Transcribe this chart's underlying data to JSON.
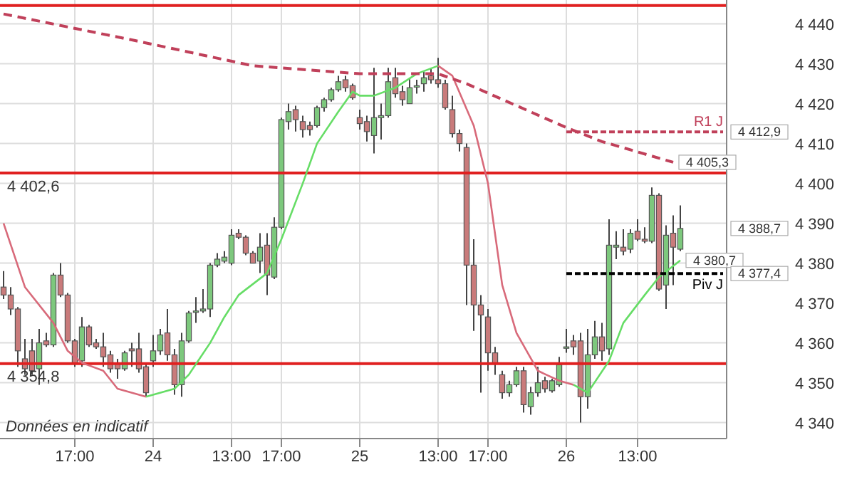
{
  "chart_data": {
    "type": "candlestick",
    "categories": [
      null,
      null,
      null,
      null,
      null,
      null,
      null,
      null,
      null,
      null,
      "17:00",
      null,
      null,
      null,
      null,
      null,
      null,
      null,
      null,
      null,
      null,
      "24",
      null,
      null,
      null,
      null,
      null,
      null,
      null,
      null,
      null,
      null,
      "13:00",
      null,
      null,
      null,
      null,
      null,
      null,
      "17:00",
      null,
      null,
      null,
      null,
      null,
      null,
      null,
      null,
      null,
      null,
      "25",
      null,
      null,
      null,
      null,
      null,
      null,
      null,
      null,
      null,
      null,
      "13:00",
      null,
      null,
      null,
      null,
      null,
      null,
      "17:00",
      null,
      null,
      null,
      null,
      null,
      null,
      null,
      null,
      null,
      null,
      "26",
      null,
      null,
      null,
      null,
      null,
      null,
      null,
      null,
      null,
      "13:00",
      null,
      null,
      null,
      null,
      null,
      null,
      null,
      null,
      null,
      null,
      null,
      null
    ],
    "ohlc": [
      [
        4374,
        4378,
        4371,
        4372
      ],
      [
        4372,
        4374,
        4367,
        4368.5
      ],
      [
        4368.5,
        4369,
        4354,
        4358
      ],
      [
        4356,
        4361,
        4352,
        4353.5
      ],
      [
        4358,
        4361,
        4352,
        4353
      ],
      [
        4353.5,
        4363.5,
        4349.5,
        4360
      ],
      [
        4360.5,
        4362.5,
        4359,
        4359.5
      ],
      [
        4359.5,
        4377.5,
        4359,
        4377
      ],
      [
        4377,
        4380,
        4371.5,
        4372
      ],
      [
        4372,
        4372.5,
        4360,
        4360.5
      ],
      [
        4360.5,
        4361,
        4354,
        4355
      ],
      [
        4355.5,
        4366.5,
        4354,
        4364
      ],
      [
        4364,
        4364.5,
        4359,
        4359.5
      ],
      [
        4360,
        4361,
        4358.5,
        4359
      ],
      [
        4359,
        4362.5,
        4354,
        4356.5
      ],
      [
        4357,
        4358,
        4352.5,
        4353.5
      ],
      [
        4355,
        4356,
        4351,
        4353.5
      ],
      [
        4353.5,
        4358,
        4353,
        4357.5
      ],
      [
        4358.5,
        4360,
        4354,
        4358
      ],
      [
        4358.5,
        4362.5,
        4352.5,
        4353.5
      ],
      [
        4354,
        4355,
        4346.5,
        4347.5
      ],
      [
        4355.5,
        4362,
        4354,
        4358
      ],
      [
        4358,
        4363.5,
        4357,
        4362
      ],
      [
        4362.5,
        4368.5,
        4355.5,
        4357
      ],
      [
        4357,
        4358.5,
        4347,
        4349.5
      ],
      [
        4349.5,
        4362.5,
        4346.5,
        4360.5
      ],
      [
        4360.5,
        4368,
        4360,
        4367.5
      ],
      [
        4368,
        4371.5,
        4365,
        4368
      ],
      [
        4368,
        4373.5,
        4367.5,
        4368.5
      ],
      [
        4368.5,
        4380,
        4366.5,
        4379.5
      ],
      [
        4379.5,
        4382.5,
        4379,
        4381
      ],
      [
        4380.5,
        4383,
        4380,
        4381.5
      ],
      [
        4380,
        4388.5,
        4379.5,
        4387
      ],
      [
        4387.5,
        4388.5,
        4386,
        4386.5
      ],
      [
        4386.5,
        4387,
        4382,
        4382.5
      ],
      [
        4382.5,
        4383,
        4380,
        4380
      ],
      [
        4380.5,
        4387.5,
        4377.5,
        4384
      ],
      [
        4384.5,
        4387.5,
        4372,
        4377
      ],
      [
        4376.5,
        4391.5,
        4376,
        4389
      ],
      [
        4389,
        4416.5,
        4388.5,
        4416
      ],
      [
        4415.5,
        4420,
        4413.5,
        4418
      ],
      [
        4418.5,
        4419.5,
        4413,
        4416
      ],
      [
        4415.5,
        4417,
        4411.5,
        4413.5
      ],
      [
        4414.5,
        4415.5,
        4412,
        4413.5
      ],
      [
        4414.5,
        4419.5,
        4414,
        4419
      ],
      [
        4419,
        4421.5,
        4418,
        4421
      ],
      [
        4421,
        4424,
        4420.5,
        4423.5
      ],
      [
        4423.5,
        4427,
        4423,
        4425.5
      ],
      [
        4426,
        4427,
        4423,
        4424
      ],
      [
        4424.5,
        4425,
        4421,
        4421.5
      ],
      [
        4416.5,
        4418.5,
        4413.5,
        4415
      ],
      [
        4415.5,
        4417,
        4410.5,
        4413
      ],
      [
        4412,
        4429,
        4407.5,
        4416.5
      ],
      [
        4416.5,
        4420,
        4411,
        4417
      ],
      [
        4417,
        4429,
        4416.5,
        4425.5
      ],
      [
        4426.5,
        4429,
        4421.5,
        4422.5
      ],
      [
        4423,
        4424.5,
        4419.5,
        4421
      ],
      [
        4420,
        4426.5,
        4420,
        4424
      ],
      [
        4424.5,
        4426,
        4422.5,
        4424.5
      ],
      [
        4425,
        4428,
        4423,
        4426.5
      ],
      [
        4427,
        4429,
        4425,
        4426
      ],
      [
        4426,
        4431.5,
        4424,
        4425
      ],
      [
        4425,
        4426,
        4418.5,
        4419
      ],
      [
        4418.5,
        4422,
        4411.5,
        4412.5
      ],
      [
        4412.5,
        4413.5,
        4408,
        4410
      ],
      [
        4409,
        4410,
        4369.5,
        4379.5
      ],
      [
        4379.5,
        4386,
        4363,
        4369.5
      ],
      [
        4369.5,
        4372,
        4347.5,
        4367
      ],
      [
        4366.5,
        4368.5,
        4353,
        4357.5
      ],
      [
        4357.5,
        4359,
        4352,
        4355
      ],
      [
        4352,
        4353,
        4346,
        4347.5
      ],
      [
        4347.5,
        4350.5,
        4346.5,
        4349.5
      ],
      [
        4349.5,
        4354,
        4349,
        4353
      ],
      [
        4353,
        4354,
        4342.5,
        4344.5
      ],
      [
        4344,
        4349,
        4342,
        4347.5
      ],
      [
        4347.5,
        4354,
        4346.5,
        4350
      ],
      [
        4350.5,
        4351.5,
        4347.5,
        4348.5
      ],
      [
        4348,
        4351,
        4347.5,
        4350.5
      ],
      [
        4349.5,
        4356.5,
        4349,
        4354.5
      ],
      [
        4359,
        4363.5,
        4357.5,
        4359
      ],
      [
        4360.5,
        4362,
        4357,
        4359
      ],
      [
        4360.5,
        4362.5,
        4340,
        4346.5
      ],
      [
        4346.5,
        4363.5,
        4343.5,
        4357
      ],
      [
        4357,
        4365.5,
        4356,
        4361.5
      ],
      [
        4361.5,
        4365,
        4355.5,
        4358
      ],
      [
        4358.5,
        4391,
        4357,
        4384.5
      ],
      [
        4384,
        4388,
        4381,
        4384.5
      ],
      [
        4384,
        4388.5,
        4382,
        4383
      ],
      [
        4383.5,
        4388.5,
        4382.5,
        4387.5
      ],
      [
        4388,
        4391,
        4385.5,
        4386
      ],
      [
        4386,
        4389,
        4385,
        4385.5
      ],
      [
        4385.5,
        4399,
        4385,
        4397
      ],
      [
        4397,
        4397.5,
        4373,
        4373.5
      ],
      [
        4374.5,
        4389.5,
        4368.5,
        4387
      ],
      [
        4387.5,
        4392,
        4374.5,
        4384
      ],
      [
        4383.5,
        4394.5,
        4383,
        4388.7
      ],
      null,
      null,
      null,
      null,
      null,
      null
    ],
    "colors": [
      "#c97b7b",
      "#c97b7b",
      "#c97b7b",
      "#c97b7b",
      "#c97b7b",
      "#7dc87d",
      "#c97b7b",
      "#7dc87d",
      "#c97b7b",
      "#c97b7b",
      "#c97b7b",
      "#7dc87d",
      "#c97b7b",
      "#c97b7b",
      "#c97b7b",
      "#c97b7b",
      "#c97b7b",
      "#7dc87d",
      "#c97b7b",
      "#c97b7b",
      "#c97b7b",
      "#7dc87d",
      "#7dc87d",
      "#c97b7b",
      "#c97b7b",
      "#7dc87d",
      "#7dc87d",
      "#7dc87d",
      "#7dc87d",
      "#7dc87d",
      "#7dc87d",
      "#7dc87d",
      "#7dc87d",
      "#c97b7b",
      "#c97b7b",
      "#c97b7b",
      "#7dc87d",
      "#c97b7b",
      "#7dc87d",
      "#7dc87d",
      "#7dc87d",
      "#c97b7b",
      "#c97b7b",
      "#c97b7b",
      "#7dc87d",
      "#7dc87d",
      "#7dc87d",
      "#7dc87d",
      "#c97b7b",
      "#c97b7b",
      "#c97b7b",
      "#c97b7b",
      "#7dc87d",
      "#7dc87d",
      "#7dc87d",
      "#c97b7b",
      "#c97b7b",
      "#7dc87d",
      "#7dc87d",
      "#7dc87d",
      "#c97b7b",
      "#c97b7b",
      "#c97b7b",
      "#c97b7b",
      "#c97b7b",
      "#c97b7b",
      "#c97b7b",
      "#c97b7b",
      "#c97b7b",
      "#c97b7b",
      "#c97b7b",
      "#7dc87d",
      "#7dc87d",
      "#c97b7b",
      "#7dc87d",
      "#7dc87d",
      "#c97b7b",
      "#7dc87d",
      "#7dc87d",
      "#7dc87d",
      "#c97b7b",
      "#c97b7b",
      "#7dc87d",
      "#7dc87d",
      "#c97b7b",
      "#7dc87d",
      "#7dc87d",
      "#c97b7b",
      "#7dc87d",
      "#c97b7b",
      "#c97b7b",
      "#7dc87d",
      "#c97b7b",
      "#7dc87d",
      "#c97b7b",
      "#7dc87d",
      null,
      null,
      null,
      null,
      null,
      null
    ],
    "series": [
      {
        "type": "line",
        "color": "#d86a7a",
        "values": [
          4390,
          null,
          null,
          4374,
          null,
          null,
          null,
          4365,
          null,
          4358,
          null,
          4355,
          null,
          null,
          4353,
          null,
          4348.5,
          null,
          null,
          null,
          4346.5,
          null,
          null,
          null,
          null,
          null,
          null,
          null,
          null,
          null,
          null,
          null,
          null,
          null,
          null,
          null,
          null,
          null,
          null,
          null,
          null,
          null,
          null,
          null,
          null,
          null,
          null,
          null,
          null,
          null,
          null,
          null,
          null,
          null,
          null,
          null,
          null,
          null,
          null,
          null,
          null,
          null,
          null,
          null,
          null,
          null,
          null,
          null,
          null,
          null,
          null,
          null,
          null,
          null,
          null,
          null,
          null,
          null,
          null,
          null,
          null,
          null,
          null,
          null,
          null,
          null,
          null,
          null,
          null,
          null,
          null,
          null,
          null,
          null,
          null,
          null,
          null,
          null,
          null,
          null,
          null,
          null
        ]
      },
      {
        "type": "line",
        "color": "#66dd66",
        "values": [
          null,
          null,
          null,
          null,
          null,
          null,
          null,
          null,
          null,
          null,
          null,
          null,
          null,
          null,
          null,
          null,
          null,
          null,
          null,
          null,
          4346.5,
          null,
          null,
          null,
          4348.5,
          null,
          4352,
          null,
          null,
          4360,
          null,
          4366.5,
          null,
          4372,
          null,
          null,
          null,
          4377.5,
          null,
          4386,
          null,
          null,
          4400,
          null,
          4410,
          null,
          null,
          4418,
          null,
          4423,
          4422,
          null,
          4422,
          null,
          null,
          4424,
          null,
          null,
          4427.5,
          null,
          null,
          4429.5,
          null,
          null,
          null,
          null,
          null,
          null,
          null,
          null,
          null,
          null,
          null,
          null,
          null,
          null,
          null,
          null,
          null,
          null,
          null,
          null,
          null,
          null,
          null,
          null,
          null,
          null,
          null,
          null,
          null,
          null,
          null,
          null,
          null,
          null,
          null,
          null,
          null,
          null,
          null,
          null
        ]
      },
      {
        "type": "line",
        "color": "#d86a7a",
        "values": [
          null,
          null,
          null,
          null,
          null,
          null,
          null,
          null,
          null,
          null,
          null,
          null,
          null,
          null,
          null,
          null,
          null,
          null,
          null,
          null,
          null,
          null,
          null,
          null,
          null,
          null,
          null,
          null,
          null,
          null,
          null,
          null,
          null,
          null,
          null,
          null,
          null,
          null,
          null,
          null,
          null,
          null,
          null,
          null,
          null,
          null,
          null,
          null,
          null,
          null,
          null,
          null,
          null,
          null,
          null,
          null,
          null,
          null,
          null,
          null,
          null,
          4429.5,
          null,
          4427,
          null,
          null,
          4414.5,
          null,
          4400,
          null,
          4374.5,
          null,
          4362.5,
          null,
          null,
          4353,
          null,
          null,
          4350.5,
          null,
          4349.5,
          null,
          null,
          null,
          null,
          null,
          null,
          null,
          null,
          null,
          null,
          null,
          null,
          null,
          null,
          null,
          null,
          null,
          null,
          null,
          null,
          null
        ]
      },
      {
        "type": "line",
        "color": "#66dd66",
        "values": [
          null,
          null,
          null,
          null,
          null,
          null,
          null,
          null,
          null,
          null,
          null,
          null,
          null,
          null,
          null,
          null,
          null,
          null,
          null,
          null,
          null,
          null,
          null,
          null,
          null,
          null,
          null,
          null,
          null,
          null,
          null,
          null,
          null,
          null,
          null,
          null,
          null,
          null,
          null,
          null,
          null,
          null,
          null,
          null,
          null,
          null,
          null,
          null,
          null,
          null,
          null,
          null,
          null,
          null,
          null,
          null,
          null,
          null,
          null,
          null,
          null,
          null,
          null,
          null,
          null,
          null,
          null,
          null,
          null,
          null,
          null,
          null,
          null,
          null,
          null,
          null,
          null,
          null,
          null,
          null,
          4349.5,
          null,
          4347.5,
          null,
          null,
          4355.5,
          null,
          4365,
          null,
          null,
          4372,
          null,
          4376.5,
          null,
          null,
          4380.7,
          null,
          null,
          null,
          null,
          null,
          null
        ],
        "value_labels": [
          null,
          null,
          null,
          null,
          null,
          null,
          null,
          null,
          null,
          null,
          null,
          null,
          null,
          null,
          null,
          null,
          null,
          null,
          null,
          null,
          null,
          null,
          null,
          null,
          null,
          null,
          null,
          null,
          null,
          null,
          null,
          null,
          null,
          null,
          null,
          null,
          null,
          null,
          null,
          null,
          null,
          null,
          null,
          null,
          null,
          null,
          null,
          null,
          null,
          null,
          null,
          null,
          null,
          null,
          null,
          null,
          null,
          null,
          null,
          null,
          null,
          null,
          null,
          null,
          null,
          null,
          null,
          null,
          null,
          null,
          null,
          null,
          null,
          null,
          null,
          null,
          null,
          null,
          null,
          null,
          null,
          null,
          null,
          null,
          null,
          null,
          null,
          null,
          null,
          null,
          null,
          null,
          null,
          null,
          null,
          "4 380,7",
          null,
          null,
          null,
          null,
          null,
          null
        ]
      },
      {
        "type": "line",
        "color": "#c0405a",
        "line_style": "dashed",
        "values": [
          4442.5,
          null,
          null,
          null,
          null,
          null,
          null,
          null,
          null,
          null,
          null,
          null,
          null,
          null,
          null,
          null,
          null,
          null,
          4436,
          null,
          null,
          null,
          null,
          null,
          null,
          null,
          null,
          null,
          null,
          null,
          null,
          null,
          null,
          null,
          null,
          4429.5,
          null,
          null,
          null,
          null,
          null,
          null,
          null,
          null,
          null,
          null,
          null,
          null,
          null,
          null,
          4427.5,
          null,
          null,
          null,
          null,
          null,
          null,
          null,
          null,
          null,
          null,
          4427.5,
          null,
          null,
          null,
          4425,
          null,
          null,
          null,
          null,
          null,
          null,
          null,
          null,
          null,
          null,
          null,
          null,
          null,
          4414,
          null,
          null,
          null,
          null,
          4410.5,
          null,
          null,
          null,
          null,
          null,
          null,
          null,
          null,
          null,
          4405.3,
          null,
          null,
          null,
          null,
          null,
          null,
          null
        ],
        "value_labels": [
          null,
          null,
          null,
          null,
          null,
          null,
          null,
          null,
          null,
          null,
          null,
          null,
          null,
          null,
          null,
          null,
          null,
          null,
          null,
          null,
          null,
          null,
          null,
          null,
          null,
          null,
          null,
          null,
          null,
          null,
          null,
          null,
          null,
          null,
          null,
          null,
          null,
          null,
          null,
          null,
          null,
          null,
          null,
          null,
          null,
          null,
          null,
          null,
          null,
          null,
          null,
          null,
          null,
          null,
          null,
          null,
          null,
          null,
          null,
          null,
          null,
          null,
          null,
          null,
          null,
          null,
          null,
          null,
          null,
          null,
          null,
          null,
          null,
          null,
          null,
          null,
          null,
          null,
          null,
          null,
          null,
          null,
          null,
          null,
          null,
          null,
          null,
          null,
          null,
          null,
          null,
          null,
          null,
          null,
          "4 405,3",
          null,
          null,
          null,
          null,
          null,
          null,
          null
        ]
      },
      {
        "type": "line",
        "name": "R1 J",
        "color": "#c0405a",
        "line_style": "dashed",
        "values": [
          null,
          null,
          null,
          null,
          null,
          null,
          null,
          null,
          null,
          null,
          null,
          null,
          null,
          null,
          null,
          null,
          null,
          null,
          null,
          null,
          null,
          null,
          null,
          null,
          null,
          null,
          null,
          null,
          null,
          null,
          null,
          null,
          null,
          null,
          null,
          null,
          null,
          null,
          null,
          null,
          null,
          null,
          null,
          null,
          null,
          null,
          null,
          null,
          null,
          null,
          null,
          null,
          null,
          null,
          null,
          null,
          null,
          null,
          null,
          null,
          null,
          null,
          null,
          null,
          null,
          null,
          null,
          null,
          null,
          null,
          null,
          null,
          null,
          null,
          null,
          null,
          null,
          null,
          null,
          4412.9,
          4412.9,
          4412.9,
          4412.9,
          4412.9,
          4412.9,
          4412.9,
          4412.9,
          4412.9,
          4412.9,
          4412.9,
          4412.9,
          4412.9,
          4412.9,
          4412.9,
          4412.9,
          4412.9,
          4412.9,
          4412.9,
          4412.9,
          4412.9,
          4412.9,
          4412.9
        ],
        "value_labels": [
          null,
          null,
          null,
          null,
          null,
          null,
          null,
          null,
          null,
          null,
          null,
          null,
          null,
          null,
          null,
          null,
          null,
          null,
          null,
          null,
          null,
          null,
          null,
          null,
          null,
          null,
          null,
          null,
          null,
          null,
          null,
          null,
          null,
          null,
          null,
          null,
          null,
          null,
          null,
          null,
          null,
          null,
          null,
          null,
          null,
          null,
          null,
          null,
          null,
          null,
          null,
          null,
          null,
          null,
          null,
          null,
          null,
          null,
          null,
          null,
          null,
          null,
          null,
          null,
          null,
          null,
          null,
          null,
          null,
          null,
          null,
          null,
          null,
          null,
          null,
          null,
          null,
          null,
          null,
          null,
          null,
          null,
          null,
          null,
          null,
          null,
          null,
          null,
          null,
          null,
          null,
          null,
          null,
          null,
          null,
          null,
          null,
          null,
          null,
          null,
          null,
          "4 412,9"
        ]
      },
      {
        "type": "line",
        "name": "Piv J",
        "color": "#000000",
        "line_style": "dashed",
        "values": [
          null,
          null,
          null,
          null,
          null,
          null,
          null,
          null,
          null,
          null,
          null,
          null,
          null,
          null,
          null,
          null,
          null,
          null,
          null,
          null,
          null,
          null,
          null,
          null,
          null,
          null,
          null,
          null,
          null,
          null,
          null,
          null,
          null,
          null,
          null,
          null,
          null,
          null,
          null,
          null,
          null,
          null,
          null,
          null,
          null,
          null,
          null,
          null,
          null,
          null,
          null,
          null,
          null,
          null,
          null,
          null,
          null,
          null,
          null,
          null,
          null,
          null,
          null,
          null,
          null,
          null,
          null,
          null,
          null,
          null,
          null,
          null,
          null,
          null,
          null,
          null,
          null,
          null,
          null,
          4377.4,
          4377.4,
          4377.4,
          4377.4,
          4377.4,
          4377.4,
          4377.4,
          4377.4,
          4377.4,
          4377.4,
          4377.4,
          4377.4,
          4377.4,
          4377.4,
          4377.4,
          4377.4,
          4377.4,
          4377.4,
          4377.4,
          4377.4,
          4377.4,
          4377.4,
          4377.4
        ],
        "value_labels": [
          null,
          null,
          null,
          null,
          null,
          null,
          null,
          null,
          null,
          null,
          null,
          null,
          null,
          null,
          null,
          null,
          null,
          null,
          null,
          null,
          null,
          null,
          null,
          null,
          null,
          null,
          null,
          null,
          null,
          null,
          null,
          null,
          null,
          null,
          null,
          null,
          null,
          null,
          null,
          null,
          null,
          null,
          null,
          null,
          null,
          null,
          null,
          null,
          null,
          null,
          null,
          null,
          null,
          null,
          null,
          null,
          null,
          null,
          null,
          null,
          null,
          null,
          null,
          null,
          null,
          null,
          null,
          null,
          null,
          null,
          null,
          null,
          null,
          null,
          null,
          null,
          null,
          null,
          null,
          null,
          null,
          null,
          null,
          null,
          null,
          null,
          null,
          null,
          null,
          null,
          null,
          null,
          null,
          null,
          null,
          null,
          null,
          null,
          null,
          null,
          null,
          "4 377,4"
        ]
      }
    ],
    "ylim": [
      4336,
      4446
    ],
    "yticks": [
      {
        "value": 4340,
        "label": "4 340"
      },
      {
        "value": 4350,
        "label": "4 350"
      },
      {
        "value": 4360,
        "label": "4 360"
      },
      {
        "value": 4370,
        "label": "4 370"
      },
      {
        "value": 4380,
        "label": "4 380"
      },
      {
        "value": 4390,
        "label": "4 390"
      },
      {
        "value": 4400,
        "label": "4 400"
      },
      {
        "value": 4410,
        "label": "4 410"
      },
      {
        "value": 4420,
        "label": "4 420"
      },
      {
        "value": 4430,
        "label": "4 430"
      },
      {
        "value": 4440,
        "label": "4 440"
      }
    ],
    "ref_lines": [
      {
        "axis": "y",
        "value": 4444.6,
        "color": "#e02020"
      },
      {
        "axis": "y",
        "value": 4402.6,
        "label": "4 402,6",
        "color": "#e02020"
      },
      {
        "axis": "y",
        "value": 4354.8,
        "label": "4 354,8",
        "color": "#e02020"
      }
    ],
    "annotations": [
      "Données en indicatif"
    ],
    "value_labels": [
      null,
      null,
      null,
      null,
      null,
      null,
      null,
      null,
      null,
      null,
      null,
      null,
      null,
      null,
      null,
      null,
      null,
      null,
      null,
      null,
      null,
      null,
      null,
      null,
      null,
      null,
      null,
      null,
      null,
      null,
      null,
      null,
      null,
      null,
      null,
      null,
      null,
      null,
      null,
      null,
      null,
      null,
      null,
      null,
      null,
      null,
      null,
      null,
      null,
      null,
      null,
      null,
      null,
      null,
      null,
      null,
      null,
      null,
      null,
      null,
      null,
      null,
      null,
      null,
      null,
      null,
      null,
      null,
      null,
      null,
      null,
      null,
      null,
      null,
      null,
      null,
      null,
      null,
      null,
      null,
      null,
      null,
      null,
      null,
      null,
      null,
      null,
      null,
      null,
      null,
      null,
      null,
      null,
      null,
      null,
      "4 388,7",
      null,
      null,
      null,
      null,
      null,
      null
    ],
    "grid": true
  }
}
